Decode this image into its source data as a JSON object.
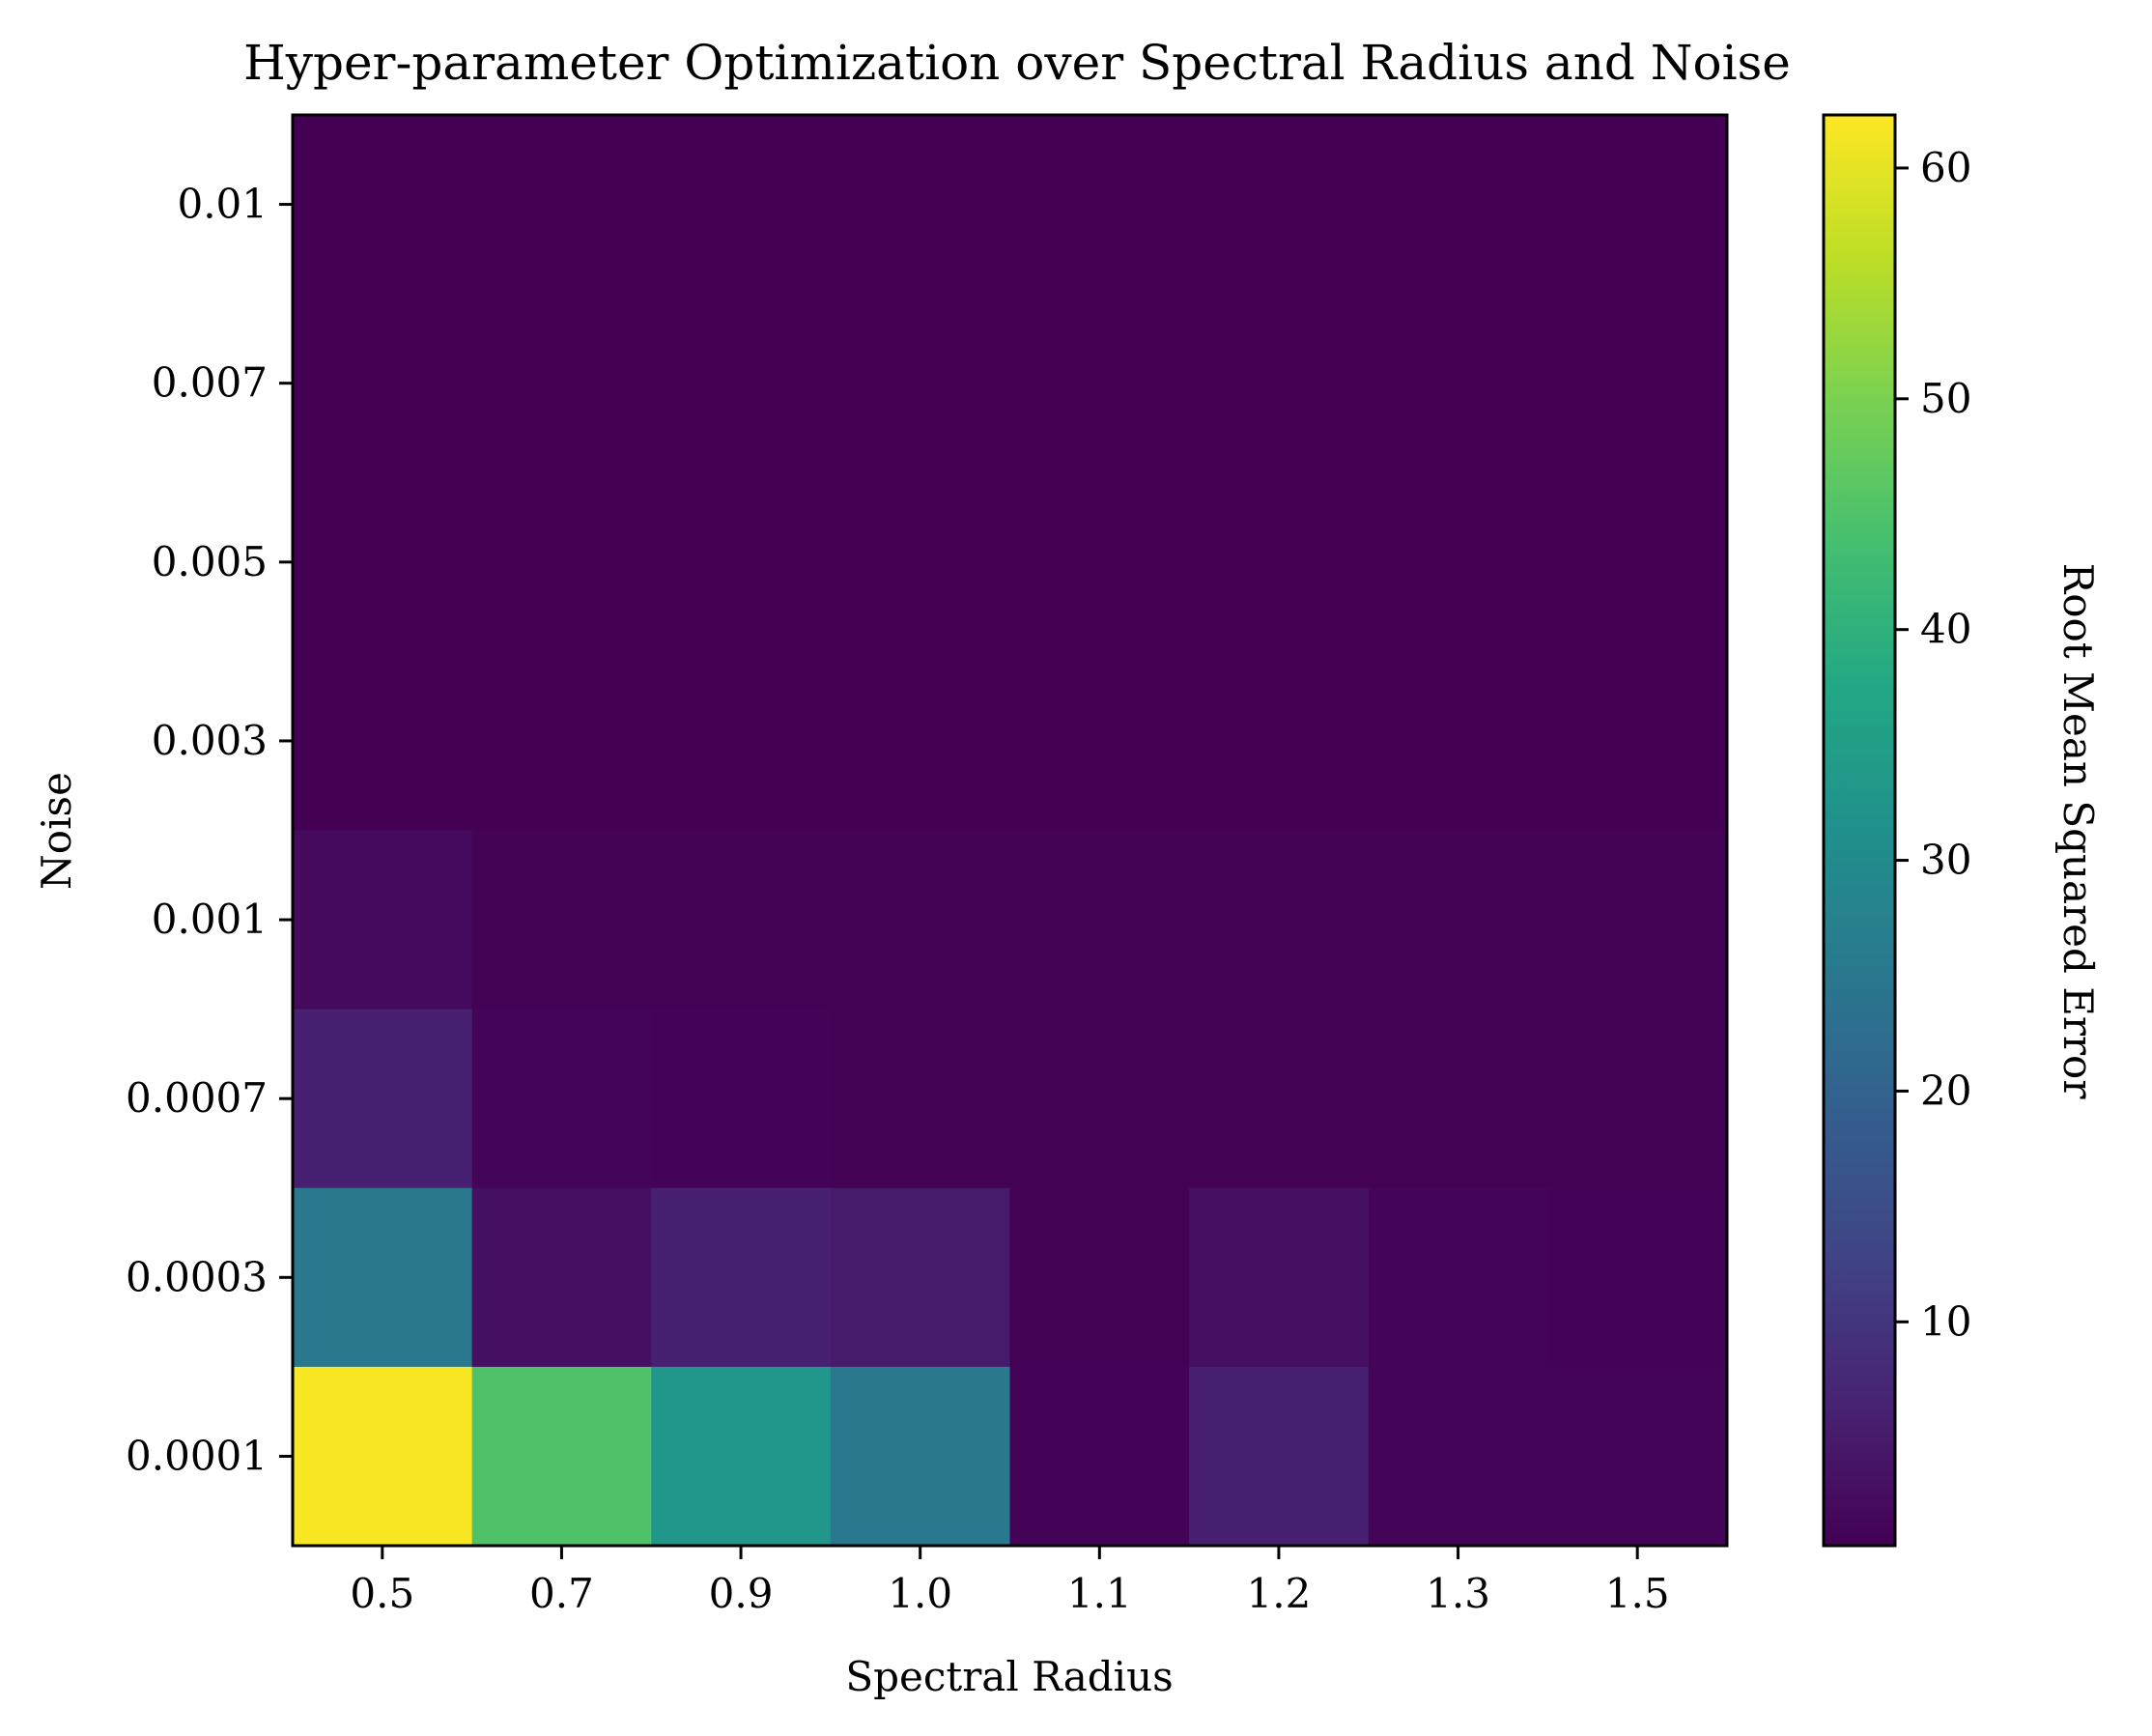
{
  "chart_data": {
    "type": "heatmap",
    "title": "Hyper-parameter Optimization over Spectral Radius and Noise",
    "xlabel": "Spectral Radius",
    "ylabel": "Noise",
    "x_categories": [
      "0.5",
      "0.7",
      "0.9",
      "1.0",
      "1.1",
      "1.2",
      "1.3",
      "1.5"
    ],
    "y_categories": [
      "0.01",
      "0.007",
      "0.005",
      "0.003",
      "0.001",
      "0.0007",
      "0.0003",
      "0.0001"
    ],
    "values": [
      [
        0.3,
        0.3,
        0.3,
        0.3,
        0.3,
        0.3,
        0.3,
        0.3
      ],
      [
        0.3,
        0.3,
        0.3,
        0.3,
        0.3,
        0.3,
        0.3,
        0.3
      ],
      [
        0.3,
        0.3,
        0.3,
        0.3,
        0.3,
        0.3,
        0.3,
        0.3
      ],
      [
        0.3,
        0.3,
        0.3,
        0.3,
        0.3,
        0.3,
        0.3,
        0.3
      ],
      [
        2.0,
        0.4,
        0.4,
        0.4,
        0.5,
        0.4,
        0.4,
        0.4
      ],
      [
        6.0,
        0.8,
        0.6,
        0.5,
        0.4,
        0.5,
        0.4,
        0.4
      ],
      [
        25.0,
        3.0,
        6.0,
        5.0,
        0.5,
        3.0,
        0.8,
        0.6
      ],
      [
        62.0,
        45.0,
        33.0,
        25.0,
        0.7,
        6.0,
        1.0,
        0.8
      ]
    ],
    "colorbar": {
      "label": "Root Mean Squared Error",
      "range": [
        0.3,
        62.3
      ],
      "ticks": [
        10,
        20,
        30,
        40,
        50,
        60
      ],
      "colormap": "viridis"
    }
  }
}
